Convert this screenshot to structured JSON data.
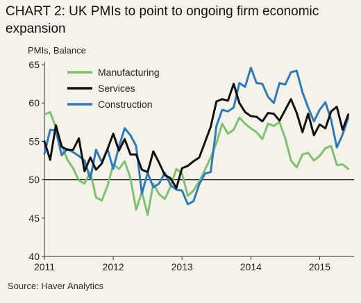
{
  "title": "CHART 2: UK PMIs to point to ongoing firm economic expansion",
  "source": "Source: Haver Analytics",
  "colors": {
    "manufacturing": "#7dc26e",
    "services": "#111111",
    "construction": "#2c7ac0",
    "background": "#f4f2e9"
  },
  "chart_data": {
    "type": "line",
    "ylabel": "PMIs, Balance",
    "xlabel": "",
    "xlim": [
      2011,
      2015.5
    ],
    "ylim": [
      40,
      65
    ],
    "yticks": [
      40,
      45,
      50,
      55,
      60,
      65
    ],
    "xticks": [
      "2011",
      "2012",
      "2013",
      "2014",
      "2015"
    ],
    "reference_line": 50,
    "legend_position": "top-left",
    "grid": false,
    "x": [
      "2011-01",
      "2011-02",
      "2011-03",
      "2011-04",
      "2011-05",
      "2011-06",
      "2011-07",
      "2011-08",
      "2011-09",
      "2011-10",
      "2011-11",
      "2011-12",
      "2012-01",
      "2012-02",
      "2012-03",
      "2012-04",
      "2012-05",
      "2012-06",
      "2012-07",
      "2012-08",
      "2012-09",
      "2012-10",
      "2012-11",
      "2012-12",
      "2013-01",
      "2013-02",
      "2013-03",
      "2013-04",
      "2013-05",
      "2013-06",
      "2013-07",
      "2013-08",
      "2013-09",
      "2013-10",
      "2013-11",
      "2013-12",
      "2014-01",
      "2014-02",
      "2014-03",
      "2014-04",
      "2014-05",
      "2014-06",
      "2014-07",
      "2014-08",
      "2014-09",
      "2014-10",
      "2014-11",
      "2014-12",
      "2015-01",
      "2015-02",
      "2015-03",
      "2015-04",
      "2015-05",
      "2015-06"
    ],
    "series": [
      {
        "name": "Manufacturing",
        "color": "#7dc26e",
        "values": [
          58.5,
          58.8,
          56.8,
          54.5,
          52.6,
          51.5,
          49.9,
          49.5,
          51.0,
          47.7,
          47.3,
          49.2,
          52.0,
          51.4,
          52.4,
          50.2,
          46.1,
          48.4,
          45.4,
          49.5,
          48.1,
          47.5,
          49.1,
          51.4,
          50.8,
          47.9,
          48.6,
          49.8,
          51.3,
          52.9,
          54.8,
          57.3,
          56.0,
          56.5,
          58.1,
          57.3,
          56.7,
          56.2,
          55.3,
          57.3,
          57.0,
          57.5,
          55.4,
          52.5,
          51.6,
          53.3,
          53.5,
          52.5,
          53.1,
          54.1,
          54.4,
          51.9,
          52.0,
          51.4
        ]
      },
      {
        "name": "Services",
        "color": "#111111",
        "values": [
          55.0,
          52.6,
          57.1,
          54.3,
          53.9,
          53.9,
          55.4,
          51.1,
          52.9,
          51.3,
          52.1,
          54.0,
          56.0,
          53.8,
          55.3,
          53.3,
          53.3,
          51.3,
          51.0,
          53.7,
          52.2,
          50.6,
          50.2,
          48.9,
          51.5,
          51.8,
          52.4,
          52.9,
          54.9,
          56.9,
          60.2,
          60.5,
          60.3,
          62.5,
          60.0,
          58.8,
          58.3,
          58.2,
          57.6,
          58.7,
          58.6,
          57.7,
          59.1,
          60.5,
          58.7,
          56.2,
          58.6,
          55.8,
          57.2,
          56.7,
          58.9,
          59.5,
          56.5,
          58.5
        ]
      },
      {
        "name": "Construction",
        "color": "#2c7ac0",
        "values": [
          53.4,
          56.5,
          56.4,
          53.2,
          54.0,
          53.6,
          53.1,
          52.5,
          50.1,
          53.9,
          52.3,
          54.0,
          51.4,
          54.3,
          56.7,
          55.8,
          54.4,
          48.2,
          50.9,
          49.0,
          49.5,
          50.9,
          49.3,
          48.7,
          48.6,
          46.8,
          47.2,
          49.4,
          50.8,
          51.0,
          57.0,
          59.1,
          58.9,
          59.4,
          62.6,
          62.1,
          64.6,
          62.6,
          62.5,
          60.8,
          60.0,
          62.6,
          62.4,
          64.0,
          64.2,
          61.4,
          59.4,
          57.6,
          59.1,
          60.1,
          57.8,
          54.2,
          55.9,
          58.1
        ]
      }
    ]
  }
}
